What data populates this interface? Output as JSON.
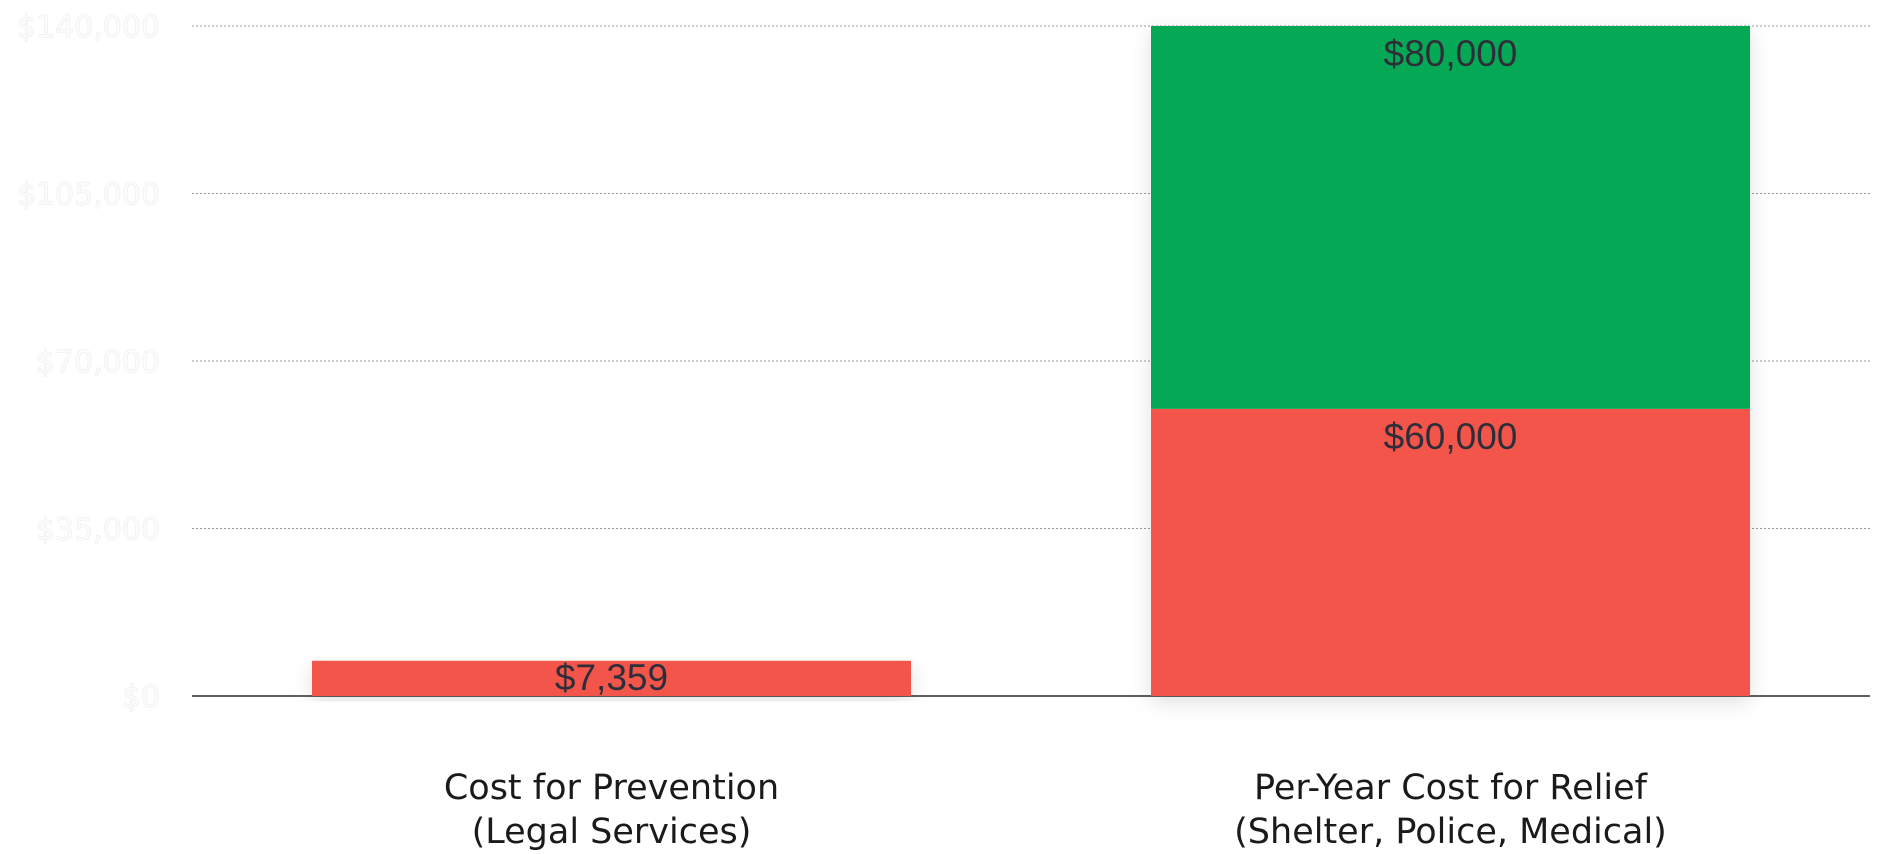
{
  "chart_data": {
    "type": "bar",
    "stacked": true,
    "categories": [
      [
        "Cost for Prevention",
        "(Legal Services)"
      ],
      [
        "Per-Year Cost for Relief",
        "(Shelter, Police, Medical)"
      ]
    ],
    "series": [
      {
        "color": "#f4554a",
        "values": [
          7359,
          60000
        ],
        "labels": [
          "$7,359",
          "$60,000"
        ]
      },
      {
        "color": "#05a955",
        "values": [
          null,
          80000
        ],
        "labels": [
          null,
          "$80,000"
        ]
      }
    ],
    "yticks": [
      0,
      35000,
      70000,
      105000,
      140000
    ],
    "ytick_labels": [
      "$0",
      "$35,000",
      "$70,000",
      "$105,000",
      "$140,000"
    ],
    "ylim": [
      0,
      140000
    ],
    "grid": true,
    "legend": false,
    "title": "",
    "xlabel": "",
    "ylabel": ""
  }
}
